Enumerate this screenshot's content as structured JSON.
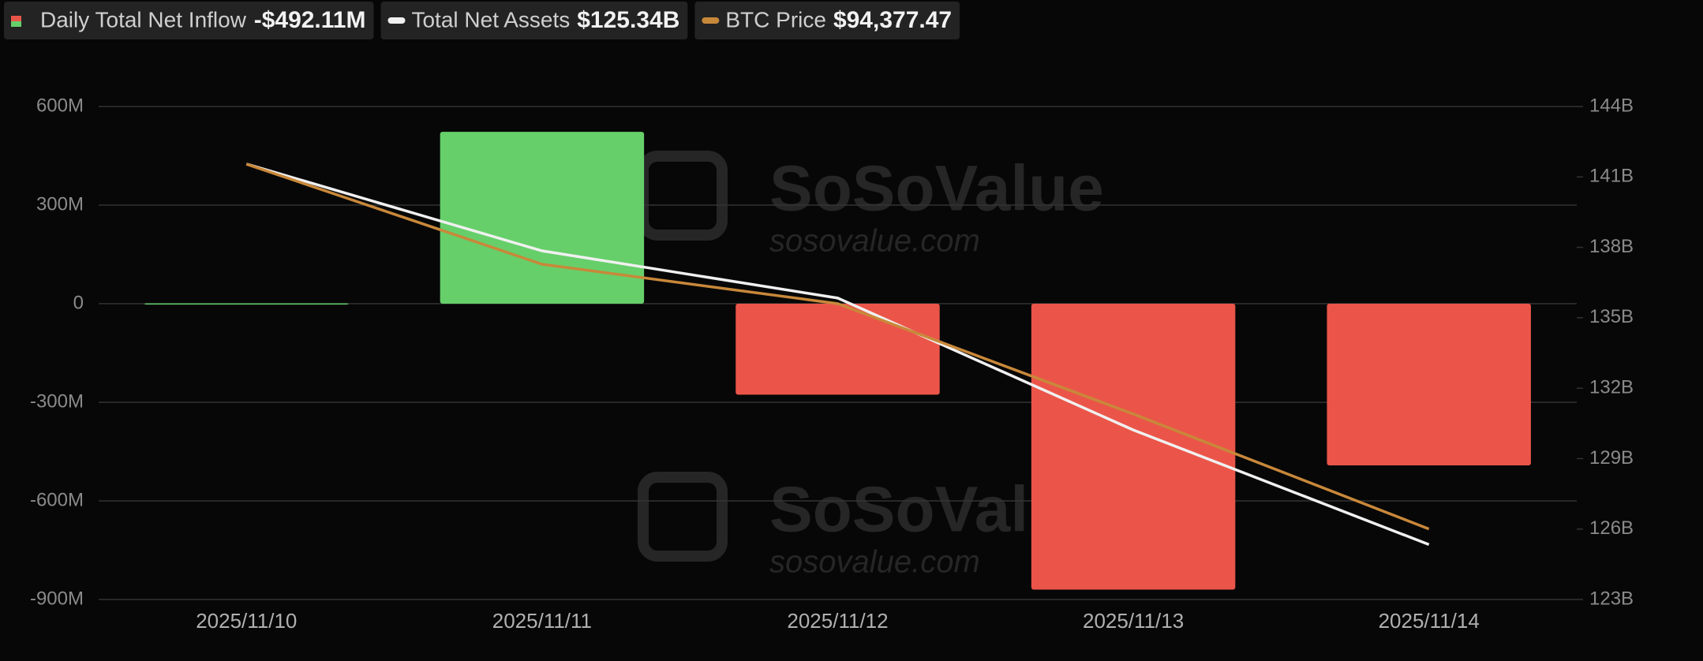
{
  "chart_data": {
    "type": "bar",
    "categories": [
      "2025/11/10",
      "2025/11/11",
      "2025/11/12",
      "2025/11/13",
      "2025/11/14"
    ],
    "watermark": [
      "SoSoValue",
      "sosovalue.com"
    ],
    "series": [
      {
        "name": "Daily Total Net Inflow",
        "legend_value": "-$492.11M",
        "type": "bar",
        "positive_color": "#66cf6a",
        "negative_color": "#eb5549",
        "values": [
          1,
          523,
          -277,
          -870,
          -492.11
        ]
      },
      {
        "name": "Total Net Assets",
        "legend_value": "$125.34B",
        "type": "line",
        "axis": "y2",
        "color": "#f0f0f0",
        "values": [
          141.55,
          137.85,
          135.84,
          130.22,
          125.34
        ]
      },
      {
        "name": "BTC Price",
        "legend_value": "$94,377.47",
        "type": "line",
        "axis": "y3",
        "color": "#c8883a",
        "values": [
          105900,
          102737,
          101493,
          98007,
          94377.47
        ]
      }
    ],
    "ylim": [
      -900,
      600
    ],
    "yticks": [
      {
        "value": -900,
        "label": "-900M"
      },
      {
        "value": -600,
        "label": "-600M"
      },
      {
        "value": -300,
        "label": "-300M"
      },
      0,
      {
        "value": 300,
        "label": "300M"
      },
      {
        "value": 600,
        "label": "600M"
      }
    ],
    "y2lim": [
      123,
      144
    ],
    "y2ticks": [
      {
        "value": 123,
        "label": "123B"
      },
      {
        "value": 126,
        "label": "126B"
      },
      {
        "value": 129,
        "label": "129B"
      },
      {
        "value": 132,
        "label": "132B"
      },
      {
        "value": 135,
        "label": "135B"
      },
      {
        "value": 138,
        "label": "138B"
      },
      {
        "value": 141,
        "label": "141B"
      },
      {
        "value": 144,
        "label": "144B"
      }
    ],
    "y3lim": [
      92150,
      107720
    ],
    "grid": true
  }
}
